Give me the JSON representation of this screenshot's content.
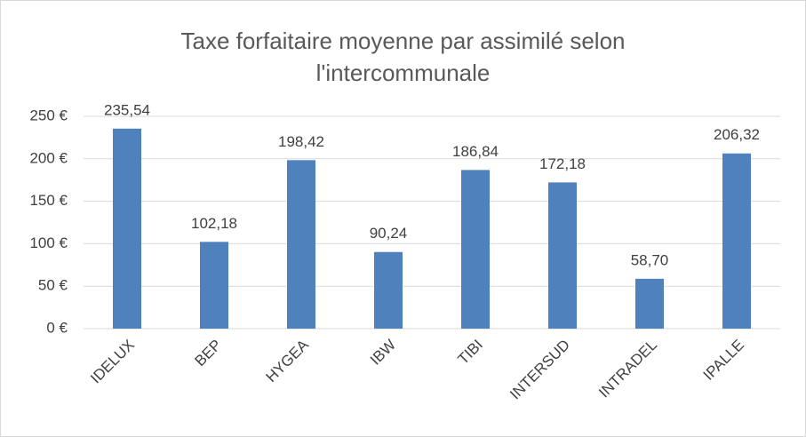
{
  "chart_data": {
    "type": "bar",
    "title": "Taxe forfaitaire moyenne par assimilé selon l'intercommunale",
    "categories": [
      "IDELUX",
      "BEP",
      "HYGEA",
      "IBW",
      "TIBI",
      "INTERSUD",
      "INTRADEL",
      "IPALLE"
    ],
    "values": [
      235.54,
      102.18,
      198.42,
      90.24,
      186.84,
      172.18,
      58.7,
      206.32
    ],
    "value_labels": [
      "235,54",
      "102,18",
      "198,42",
      "90,24",
      "186,84",
      "172,18",
      "58,70",
      "206,32"
    ],
    "color": "#4f81bd",
    "ylim": [
      0,
      250
    ],
    "yticks": [
      {
        "value": 0,
        "label": "0 €"
      },
      {
        "value": 50,
        "label": "50 €"
      },
      {
        "value": 100,
        "label": "100 €"
      },
      {
        "value": 150,
        "label": "150 €"
      },
      {
        "value": 200,
        "label": "200 €"
      },
      {
        "value": 250,
        "label": "250 €"
      }
    ],
    "grid": true
  }
}
